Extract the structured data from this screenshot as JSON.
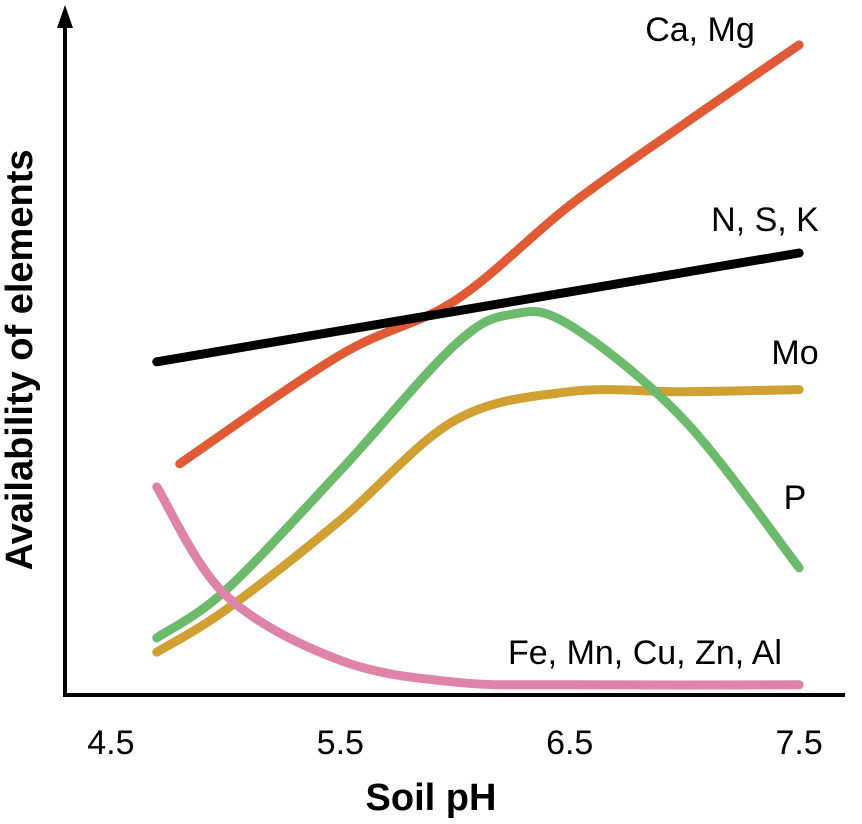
{
  "chart_data": {
    "type": "line",
    "xlabel": "Soil pH",
    "ylabel": "Availability of elements",
    "xlim": [
      4.3,
      7.7
    ],
    "xticks": [
      4.5,
      5.5,
      6.5,
      7.5
    ],
    "ylim": [
      0,
      100
    ],
    "series": [
      {
        "name": "Ca, Mg",
        "color": "#e05a35",
        "x": [
          4.8,
          5.5,
          6.0,
          6.5,
          7.0,
          7.5
        ],
        "values": [
          34,
          50,
          58,
          72,
          84,
          95.6
        ]
      },
      {
        "name": "N, S, K",
        "color": "#000000",
        "x": [
          4.7,
          7.5
        ],
        "values": [
          49,
          65
        ]
      },
      {
        "name": "Mo",
        "color": "#d1a032",
        "x": [
          4.7,
          5.0,
          5.5,
          6.0,
          6.5,
          7.0,
          7.5
        ],
        "values": [
          6.3,
          12.5,
          25.7,
          40.4,
          44.6,
          44.6,
          44.9
        ]
      },
      {
        "name": "P",
        "color": "#6cba6c",
        "x": [
          4.7,
          5.0,
          5.5,
          6.0,
          6.25,
          6.5,
          7.0,
          7.5
        ],
        "values": [
          8.4,
          15.4,
          33,
          51.5,
          56,
          54.4,
          40.4,
          18.7
        ]
      },
      {
        "name": "Fe, Mn, Cu, Zn, Al",
        "color": "#e083a8",
        "x": [
          4.7,
          5.0,
          5.5,
          6.0,
          6.5,
          7.5
        ],
        "values": [
          30.6,
          14.7,
          5.1,
          1.9,
          1.5,
          1.5
        ]
      }
    ]
  }
}
